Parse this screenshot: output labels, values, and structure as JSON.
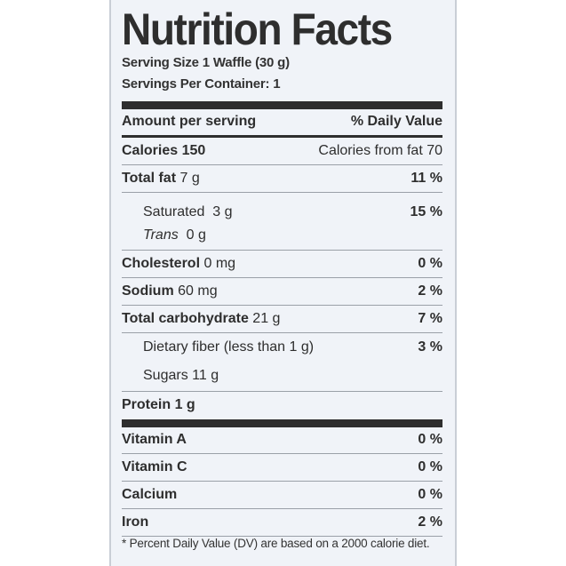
{
  "label": {
    "title": "Nutrition Facts",
    "serving_size": "Serving Size 1 Waffle (30 g)",
    "servings_per_container": "Servings Per Container: 1",
    "amount_per_serving": "Amount per serving",
    "daily_value_header": "% Daily Value",
    "calories": "Calories 150",
    "calories_from_fat": "Calories from fat 70",
    "total_fat": {
      "label": "Total fat",
      "amount": "7 g",
      "dv": "11 %"
    },
    "saturated": {
      "label": "Saturated",
      "amount": "3 g",
      "dv": "15 %"
    },
    "trans": {
      "label": "Trans",
      "amount": "0 g"
    },
    "cholesterol": {
      "label": "Cholesterol",
      "amount": "0 mg",
      "dv": "0 %"
    },
    "sodium": {
      "label": "Sodium",
      "amount": "60 mg",
      "dv": "2 %"
    },
    "total_carbohydrate": {
      "label": "Total carbohydrate",
      "amount": "21 g",
      "dv": "7 %"
    },
    "dietary_fiber": {
      "label": "Dietary fiber (less than 1 g)",
      "dv": "3 %"
    },
    "sugars": {
      "label": "Sugars",
      "amount": "11 g"
    },
    "protein": {
      "label": "Protein",
      "amount": "1 g"
    },
    "vitamin_a": {
      "label": "Vitamin A",
      "dv": "0 %"
    },
    "vitamin_c": {
      "label": "Vitamin C",
      "dv": "0 %"
    },
    "calcium": {
      "label": "Calcium",
      "dv": "0 %"
    },
    "iron": {
      "label": "Iron",
      "dv": "2 %"
    },
    "footnote": "* Percent Daily Value (DV) are based on a 2000 calorie diet."
  },
  "colors": {
    "panel_bg": "#f0f3f8",
    "text": "#2e2e2e",
    "rule": "#2e2e2e"
  }
}
